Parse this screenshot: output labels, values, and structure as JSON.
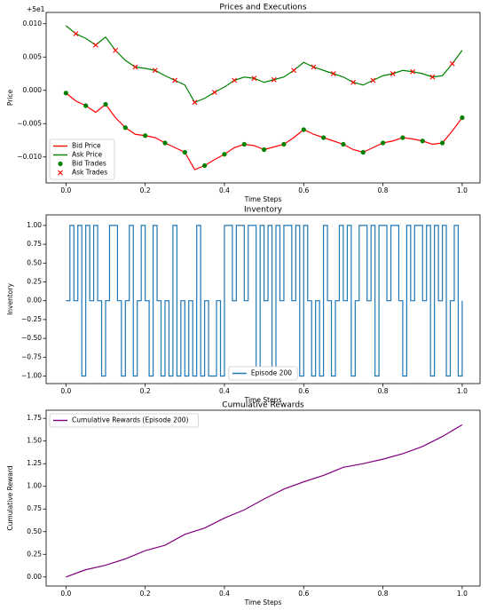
{
  "chart_data": [
    {
      "type": "line",
      "title": "Prices and Executions",
      "offset_label": "+5e1",
      "xlabel": "Time Steps",
      "ylabel": "Price",
      "xlim": [
        -0.05,
        1.045
      ],
      "ylim": [
        -0.0139,
        0.0117
      ],
      "xticks": [
        {
          "value": 0,
          "label": "0.0"
        },
        0.2,
        0.4,
        0.6,
        0.8,
        {
          "value": 1,
          "label": "1.0"
        }
      ],
      "yticks": [
        {
          "value": -0.01,
          "label": "−0.010"
        },
        {
          "value": -0.005,
          "label": "−0.005"
        },
        {
          "value": 0,
          "label": "0.000"
        },
        0.005,
        {
          "value": 0.01,
          "label": "0.010"
        }
      ],
      "legend": "lower left",
      "x": [
        0,
        0.025,
        0.05,
        0.075,
        0.1,
        0.125,
        0.15,
        0.175,
        0.2,
        0.225,
        0.25,
        0.275,
        0.3,
        0.325,
        0.35,
        0.375,
        0.4,
        0.425,
        0.45,
        0.475,
        0.5,
        0.525,
        0.55,
        0.575,
        0.6,
        0.625,
        0.65,
        0.675,
        0.7,
        0.725,
        0.75,
        0.775,
        0.8,
        0.825,
        0.85,
        0.875,
        0.9,
        0.925,
        0.95,
        0.975,
        1.0
      ],
      "series": [
        {
          "name": "Bid Price",
          "color": "#ff0000",
          "marker": "line",
          "values": [
            -0.0004,
            -0.0016,
            -0.0023,
            -0.0033,
            -0.0021,
            -0.0041,
            -0.0056,
            -0.0066,
            -0.0068,
            -0.0071,
            -0.0079,
            -0.0086,
            -0.0093,
            -0.0119,
            -0.0113,
            -0.0104,
            -0.0096,
            -0.0086,
            -0.0081,
            -0.0083,
            -0.0089,
            -0.0085,
            -0.0081,
            -0.0071,
            -0.0059,
            -0.0066,
            -0.0071,
            -0.0076,
            -0.0081,
            -0.0089,
            -0.0093,
            -0.0086,
            -0.0079,
            -0.0076,
            -0.0071,
            -0.0073,
            -0.0076,
            -0.0081,
            -0.0079,
            -0.0061,
            -0.0041
          ]
        },
        {
          "name": "Ask Price",
          "color": "#008000",
          "marker": "line",
          "values": [
            0.0097,
            0.0085,
            0.0078,
            0.0068,
            0.008,
            0.006,
            0.0045,
            0.0035,
            0.0033,
            0.003,
            0.0022,
            0.0015,
            0.0008,
            -0.0018,
            -0.0012,
            -0.0003,
            0.0005,
            0.0015,
            0.002,
            0.0018,
            0.0012,
            0.0016,
            0.002,
            0.003,
            0.0042,
            0.0035,
            0.003,
            0.0025,
            0.002,
            0.0012,
            0.0008,
            0.0015,
            0.0022,
            0.0025,
            0.003,
            0.0028,
            0.0025,
            0.002,
            0.0022,
            0.004,
            0.006
          ]
        },
        {
          "name": "Bid Trades",
          "color": "#008000",
          "marker": "o",
          "x": [
            0,
            0.05,
            0.1,
            0.15,
            0.2,
            0.25,
            0.3,
            0.35,
            0.4,
            0.45,
            0.5,
            0.55,
            0.6,
            0.65,
            0.7,
            0.75,
            0.8,
            0.85,
            0.9,
            0.95,
            1.0
          ],
          "values": [
            -0.0004,
            -0.0023,
            -0.0021,
            -0.0056,
            -0.0068,
            -0.0079,
            -0.0093,
            -0.0113,
            -0.0096,
            -0.0081,
            -0.0089,
            -0.0081,
            -0.0059,
            -0.0071,
            -0.0081,
            -0.0093,
            -0.0079,
            -0.0071,
            -0.0076,
            -0.0079,
            -0.0041
          ]
        },
        {
          "name": "Ask Trades",
          "color": "#ff0000",
          "marker": "x",
          "x": [
            0.025,
            0.075,
            0.125,
            0.175,
            0.225,
            0.275,
            0.325,
            0.375,
            0.425,
            0.475,
            0.525,
            0.575,
            0.625,
            0.675,
            0.725,
            0.775,
            0.825,
            0.875,
            0.925,
            0.975
          ],
          "values": [
            0.0085,
            0.0068,
            0.006,
            0.0035,
            0.003,
            0.0015,
            -0.0018,
            -0.0003,
            0.0015,
            0.0018,
            0.0016,
            0.003,
            0.0035,
            0.0025,
            0.0012,
            0.0015,
            0.0025,
            0.0028,
            0.002,
            0.004
          ]
        }
      ]
    },
    {
      "type": "line",
      "title": "Inventory",
      "xlabel": "Time Steps",
      "ylabel": "Inventory",
      "drawstyle": "steps-post",
      "xlim": [
        -0.05,
        1.045
      ],
      "ylim": [
        -1.1,
        1.14
      ],
      "xticks": [
        {
          "value": 0,
          "label": "0.0"
        },
        0.2,
        0.4,
        0.6,
        0.8,
        {
          "value": 1,
          "label": "1.0"
        }
      ],
      "yticks": [
        {
          "value": -1,
          "label": "−1.00"
        },
        {
          "value": -0.75,
          "label": "−0.75"
        },
        {
          "value": -0.5,
          "label": "−0.50"
        },
        {
          "value": -0.25,
          "label": "−0.25"
        },
        {
          "value": 0,
          "label": "0.00"
        },
        0.25,
        {
          "value": 0.5,
          "label": "0.50"
        },
        0.75,
        {
          "value": 1,
          "label": "1.00"
        }
      ],
      "legend": "lower center",
      "x": [
        0,
        0.01,
        0.02,
        0.03,
        0.04,
        0.05,
        0.06,
        0.07,
        0.08,
        0.09,
        0.1,
        0.11,
        0.12,
        0.13,
        0.14,
        0.15,
        0.16,
        0.17,
        0.18,
        0.19,
        0.2,
        0.21,
        0.22,
        0.23,
        0.24,
        0.25,
        0.26,
        0.27,
        0.28,
        0.29,
        0.3,
        0.31,
        0.32,
        0.33,
        0.34,
        0.35,
        0.36,
        0.37,
        0.38,
        0.39,
        0.4,
        0.41,
        0.42,
        0.43,
        0.44,
        0.45,
        0.46,
        0.47,
        0.48,
        0.49,
        0.5,
        0.51,
        0.52,
        0.53,
        0.54,
        0.55,
        0.56,
        0.57,
        0.58,
        0.59,
        0.6,
        0.61,
        0.62,
        0.63,
        0.64,
        0.65,
        0.66,
        0.67,
        0.68,
        0.69,
        0.7,
        0.71,
        0.72,
        0.73,
        0.74,
        0.75,
        0.76,
        0.77,
        0.78,
        0.79,
        0.8,
        0.81,
        0.82,
        0.83,
        0.84,
        0.85,
        0.86,
        0.87,
        0.88,
        0.89,
        0.9,
        0.91,
        0.92,
        0.93,
        0.94,
        0.95,
        0.96,
        0.97,
        0.98,
        0.99,
        1.0
      ],
      "series": [
        {
          "name": "Episode 200",
          "color": "#1f77b4",
          "marker": "line",
          "values": [
            0,
            1,
            0,
            1,
            -1,
            1,
            0,
            1,
            0,
            -1,
            0,
            1,
            1,
            0,
            -1,
            0,
            1,
            -1,
            0,
            1,
            0,
            -1,
            1,
            0,
            -1,
            0,
            -1,
            1,
            -1,
            0,
            -1,
            0,
            -1,
            1,
            -1,
            0,
            -1,
            -1,
            0,
            -1,
            1,
            1,
            0,
            1,
            1,
            0,
            1,
            1,
            -1,
            1,
            0,
            1,
            -1,
            1,
            0,
            1,
            1,
            0,
            1,
            -1,
            1,
            0,
            -1,
            0,
            -1,
            1,
            0,
            -1,
            0,
            1,
            0,
            1,
            -1,
            0,
            1,
            1,
            0,
            1,
            -1,
            1,
            1,
            0,
            1,
            1,
            0,
            -1,
            1,
            0,
            1,
            1,
            0,
            1,
            -1,
            1,
            0,
            1,
            -1,
            0,
            1,
            -1,
            0
          ]
        }
      ]
    },
    {
      "type": "line",
      "title": "Cumulative Rewards",
      "xlabel": "Time Steps",
      "ylabel": "Cumulative Reward",
      "xlim": [
        -0.05,
        1.045
      ],
      "ylim": [
        -0.1,
        1.84
      ],
      "xticks": [
        {
          "value": 0,
          "label": "0.0"
        },
        0.2,
        0.4,
        0.6,
        0.8,
        {
          "value": 1,
          "label": "1.0"
        }
      ],
      "yticks": [
        {
          "value": 0,
          "label": "0.00"
        },
        0.25,
        {
          "value": 0.5,
          "label": "0.50"
        },
        0.75,
        {
          "value": 1,
          "label": "1.00"
        },
        1.25,
        {
          "value": 1.5,
          "label": "1.50"
        },
        1.75
      ],
      "legend": "upper left",
      "x": [
        0,
        0.05,
        0.1,
        0.15,
        0.2,
        0.25,
        0.3,
        0.35,
        0.4,
        0.45,
        0.5,
        0.55,
        0.6,
        0.65,
        0.7,
        0.75,
        0.8,
        0.85,
        0.9,
        0.95,
        1.0
      ],
      "series": [
        {
          "name": "Cumulative Rewards (Episode 200)",
          "color": "#800080",
          "marker": "line",
          "values": [
            0.0,
            0.08,
            0.13,
            0.2,
            0.29,
            0.35,
            0.47,
            0.54,
            0.65,
            0.74,
            0.86,
            0.97,
            1.05,
            1.12,
            1.21,
            1.25,
            1.3,
            1.36,
            1.44,
            1.55,
            1.68
          ]
        }
      ]
    }
  ]
}
